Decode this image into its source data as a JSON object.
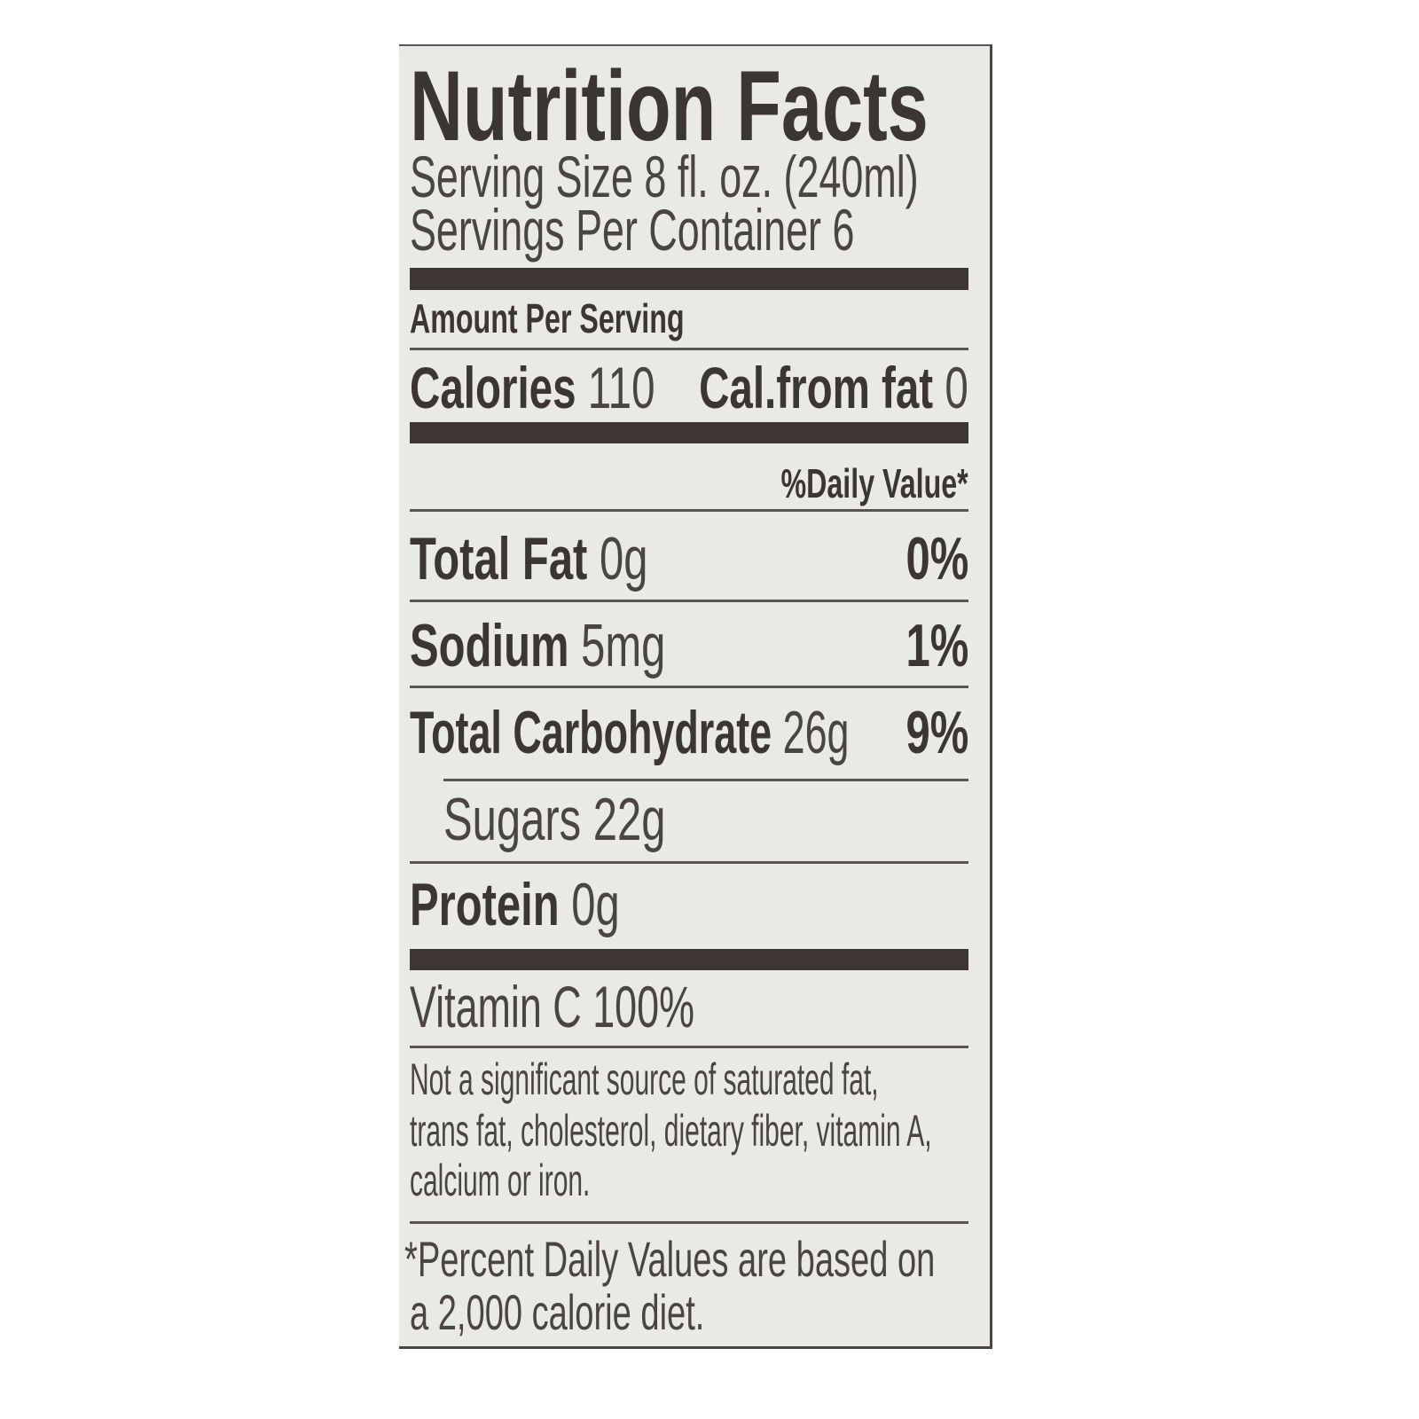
{
  "title": "Nutrition Facts",
  "serving_size": "Serving Size 8 fl. oz. (240ml)",
  "servings_per_container": "Servings Per Container 6",
  "amount_per_serving": "Amount Per Serving",
  "calories": {
    "label": "Calories",
    "value": "110",
    "fat_label": "Cal.from fat",
    "fat_value": "0"
  },
  "daily_value_header": "%Daily Value*",
  "nutrients": [
    {
      "label": "Total Fat",
      "amount": "0g",
      "dv": "0%"
    },
    {
      "label": "Sodium",
      "amount": "5mg",
      "dv": "1%"
    },
    {
      "label": "Total Carbohydrate",
      "amount": "26g",
      "dv": "9%"
    },
    {
      "label": "Sugars",
      "amount": "22g"
    },
    {
      "label": "Protein",
      "amount": "0g"
    }
  ],
  "vitamin": "Vitamin C 100%",
  "not_significant": [
    "Not a significant source of saturated fat,",
    "trans fat, cholesterol, dietary fiber, vitamin A,",
    "calcium or iron."
  ],
  "footnote": [
    "*Percent Daily Values are based on",
    "a 2,000 calorie diet."
  ],
  "colors": {
    "ink": "#3b3533",
    "background": "#e9e9e5"
  }
}
